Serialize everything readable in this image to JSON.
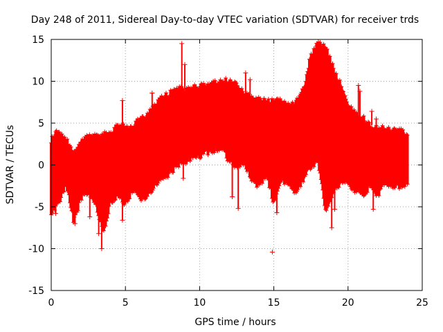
{
  "chart_data": {
    "type": "scatter",
    "title": "Day 248 of 2011, Sidereal Day-to-day VTEC variation (SDTVAR) for receiver trds",
    "xlabel": "GPS time / hours",
    "ylabel": "SDTVAR / TECUs",
    "xlim": [
      0,
      25
    ],
    "ylim": [
      -15,
      15
    ],
    "xticks": [
      0,
      5,
      10,
      15,
      20,
      25
    ],
    "yticks": [
      -15,
      -10,
      -5,
      0,
      5,
      10,
      15
    ],
    "grid": true,
    "marker": "plus",
    "series_color": "#ff0000",
    "series": [
      {
        "name": "SDTVAR",
        "envelope": {
          "x": [
            0.0,
            0.5,
            1.0,
            1.5,
            2.0,
            2.5,
            3.0,
            3.5,
            4.0,
            4.5,
            5.0,
            5.5,
            6.0,
            6.5,
            7.0,
            7.5,
            8.0,
            8.5,
            9.0,
            9.5,
            10.0,
            10.5,
            11.0,
            11.5,
            12.0,
            12.5,
            13.0,
            13.5,
            14.0,
            14.5,
            15.0,
            15.5,
            16.0,
            16.5,
            17.0,
            17.5,
            18.0,
            18.5,
            19.0,
            19.5,
            20.0,
            20.5,
            21.0,
            21.5,
            22.0,
            22.5,
            23.0,
            23.5,
            24.0
          ],
          "upper": [
            3.0,
            4.0,
            3.0,
            1.5,
            2.5,
            3.5,
            3.5,
            3.5,
            4.0,
            4.5,
            4.5,
            4.5,
            5.5,
            6.0,
            7.0,
            8.0,
            8.5,
            9.0,
            9.0,
            9.2,
            9.3,
            9.4,
            9.7,
            10.0,
            10.0,
            9.5,
            8.5,
            8.0,
            7.8,
            7.6,
            7.5,
            7.5,
            7.0,
            7.5,
            9.0,
            13.0,
            14.5,
            14.0,
            11.5,
            9.5,
            7.0,
            6.0,
            5.5,
            4.8,
            4.5,
            4.2,
            4.0,
            4.0,
            3.5
          ],
          "lower": [
            -5.5,
            -4.5,
            -2.0,
            -6.5,
            -4.0,
            -3.0,
            -4.5,
            -8.0,
            -4.5,
            -3.5,
            -4.5,
            -3.0,
            -4.0,
            -3.5,
            -2.5,
            -1.5,
            -1.0,
            0.0,
            0.5,
            1.0,
            1.2,
            1.6,
            1.8,
            2.0,
            0.5,
            0.0,
            0.0,
            -1.5,
            -2.5,
            -1.0,
            -4.5,
            -1.5,
            -2.5,
            -3.5,
            -1.5,
            0.0,
            0.5,
            -5.5,
            -3.0,
            -2.0,
            -2.0,
            -3.0,
            -3.5,
            -2.5,
            -3.5,
            -2.0,
            -2.5,
            -2.5,
            -2.0
          ]
        },
        "outliers": [
          {
            "x": 0.3,
            "y": -5.8
          },
          {
            "x": 1.6,
            "y": -7.0
          },
          {
            "x": 2.6,
            "y": -6.2
          },
          {
            "x": 3.2,
            "y": -8.2
          },
          {
            "x": 3.4,
            "y": -10.0
          },
          {
            "x": 4.8,
            "y": 7.7
          },
          {
            "x": 4.8,
            "y": -6.6
          },
          {
            "x": 6.8,
            "y": 8.6
          },
          {
            "x": 8.8,
            "y": 14.5
          },
          {
            "x": 9.0,
            "y": 12.0
          },
          {
            "x": 8.9,
            "y": -1.6
          },
          {
            "x": 12.2,
            "y": -3.8
          },
          {
            "x": 13.1,
            "y": 11.0
          },
          {
            "x": 13.4,
            "y": 10.2
          },
          {
            "x": 12.6,
            "y": -5.2
          },
          {
            "x": 14.9,
            "y": -10.4
          },
          {
            "x": 15.2,
            "y": -5.7
          },
          {
            "x": 17.9,
            "y": 14.2
          },
          {
            "x": 18.9,
            "y": -7.5
          },
          {
            "x": 19.1,
            "y": -5.3
          },
          {
            "x": 20.7,
            "y": 9.5
          },
          {
            "x": 20.8,
            "y": 8.8
          },
          {
            "x": 21.6,
            "y": 6.4
          },
          {
            "x": 21.9,
            "y": 5.5
          },
          {
            "x": 21.7,
            "y": -5.3
          },
          {
            "x": 23.4,
            "y": -2.2
          }
        ]
      }
    ]
  }
}
